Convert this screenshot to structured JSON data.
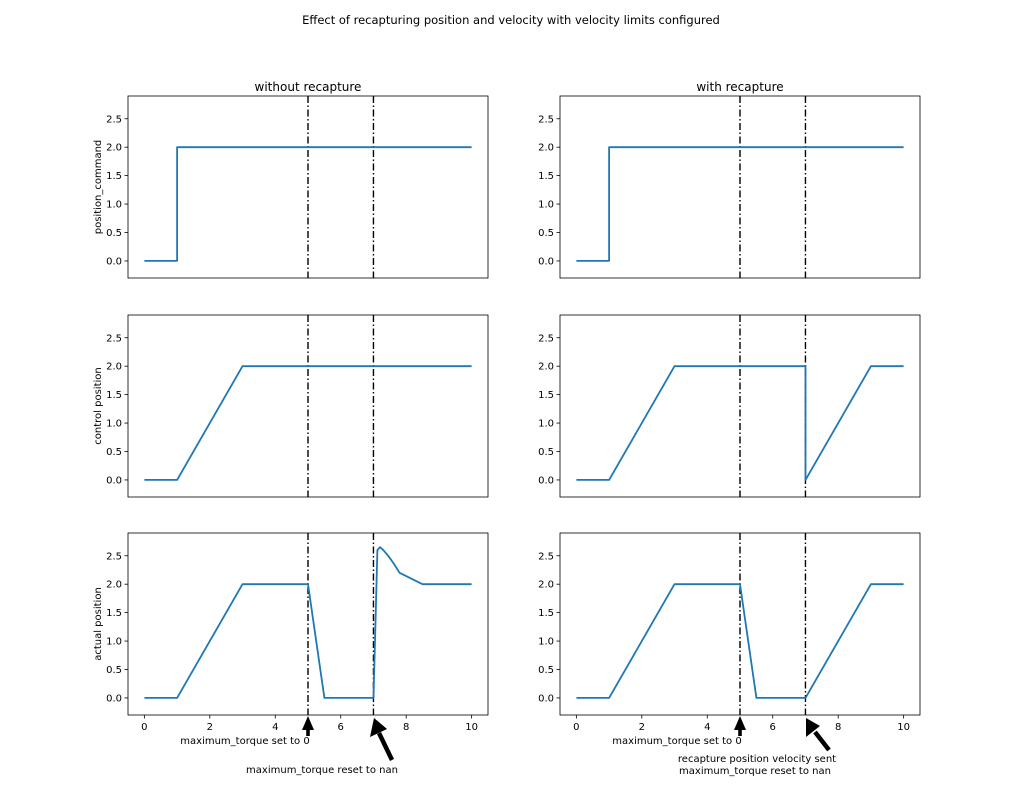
{
  "suptitle": "Effect of recapturing position and velocity with velocity limits configured",
  "columns": [
    "without recapture",
    "with recapture"
  ],
  "row_labels": [
    "position_command",
    "control position",
    "actual position"
  ],
  "annotations": {
    "left": [
      "maximum_torque set to 0",
      "maximum_torque reset to nan"
    ],
    "right": [
      "maximum_torque set to 0",
      "recapture position velocity sent",
      "maximum_torque reset to nan"
    ]
  },
  "colors": {
    "series": "#1f77b4",
    "vline": "#000000",
    "arrow": "#000000"
  },
  "chart_data": [
    {
      "type": "line",
      "panel": "without recapture / position_command",
      "xlim": [
        -0.5,
        10.5
      ],
      "ylim": [
        -0.3,
        2.9
      ],
      "yticks": [
        "0.0",
        "0.5",
        "1.0",
        "1.5",
        "2.0",
        "2.5"
      ],
      "xticks": [],
      "vlines": [
        5,
        7
      ],
      "x": [
        0,
        1,
        1,
        10
      ],
      "y": [
        0,
        0,
        2,
        2
      ]
    },
    {
      "type": "line",
      "panel": "with recapture / position_command",
      "xlim": [
        -0.5,
        10.5
      ],
      "ylim": [
        -0.3,
        2.9
      ],
      "yticks": [
        "0.0",
        "0.5",
        "1.0",
        "1.5",
        "2.0",
        "2.5"
      ],
      "xticks": [],
      "vlines": [
        5,
        7
      ],
      "x": [
        0,
        1,
        1,
        10
      ],
      "y": [
        0,
        0,
        2,
        2
      ]
    },
    {
      "type": "line",
      "panel": "without recapture / control position",
      "xlim": [
        -0.5,
        10.5
      ],
      "ylim": [
        -0.3,
        2.9
      ],
      "yticks": [
        "0.0",
        "0.5",
        "1.0",
        "1.5",
        "2.0",
        "2.5"
      ],
      "xticks": [],
      "vlines": [
        5,
        7
      ],
      "x": [
        0,
        1,
        3,
        10
      ],
      "y": [
        0,
        0,
        2,
        2
      ]
    },
    {
      "type": "line",
      "panel": "with recapture / control position",
      "xlim": [
        -0.5,
        10.5
      ],
      "ylim": [
        -0.3,
        2.9
      ],
      "yticks": [
        "0.0",
        "0.5",
        "1.0",
        "1.5",
        "2.0",
        "2.5"
      ],
      "xticks": [],
      "vlines": [
        5,
        7
      ],
      "x": [
        0,
        1,
        3,
        7,
        7,
        9,
        10
      ],
      "y": [
        0,
        0,
        2,
        2,
        0,
        2,
        2
      ]
    },
    {
      "type": "line",
      "panel": "without recapture / actual position",
      "xlim": [
        -0.5,
        10.5
      ],
      "ylim": [
        -0.3,
        2.9
      ],
      "yticks": [
        "0.0",
        "0.5",
        "1.0",
        "1.5",
        "2.0",
        "2.5"
      ],
      "xticks": [
        "0",
        "2",
        "4",
        "6",
        "8",
        "10"
      ],
      "vlines": [
        5,
        7
      ],
      "x": [
        0,
        1,
        3,
        5,
        5.5,
        7,
        7.12,
        7.2,
        7.3,
        7.45,
        7.6,
        7.8,
        8.5,
        10
      ],
      "y": [
        0,
        0,
        2,
        2,
        0,
        0,
        2.6,
        2.65,
        2.6,
        2.5,
        2.38,
        2.2,
        2.0,
        2.0
      ]
    },
    {
      "type": "line",
      "panel": "with recapture / actual position",
      "xlim": [
        -0.5,
        10.5
      ],
      "ylim": [
        -0.3,
        2.9
      ],
      "yticks": [
        "0.0",
        "0.5",
        "1.0",
        "1.5",
        "2.0",
        "2.5"
      ],
      "xticks": [
        "0",
        "2",
        "4",
        "6",
        "8",
        "10"
      ],
      "vlines": [
        5,
        7
      ],
      "x": [
        0,
        1,
        3,
        5,
        5.5,
        7,
        9,
        10
      ],
      "y": [
        0,
        0,
        2,
        2,
        0,
        0,
        2,
        2
      ]
    }
  ]
}
